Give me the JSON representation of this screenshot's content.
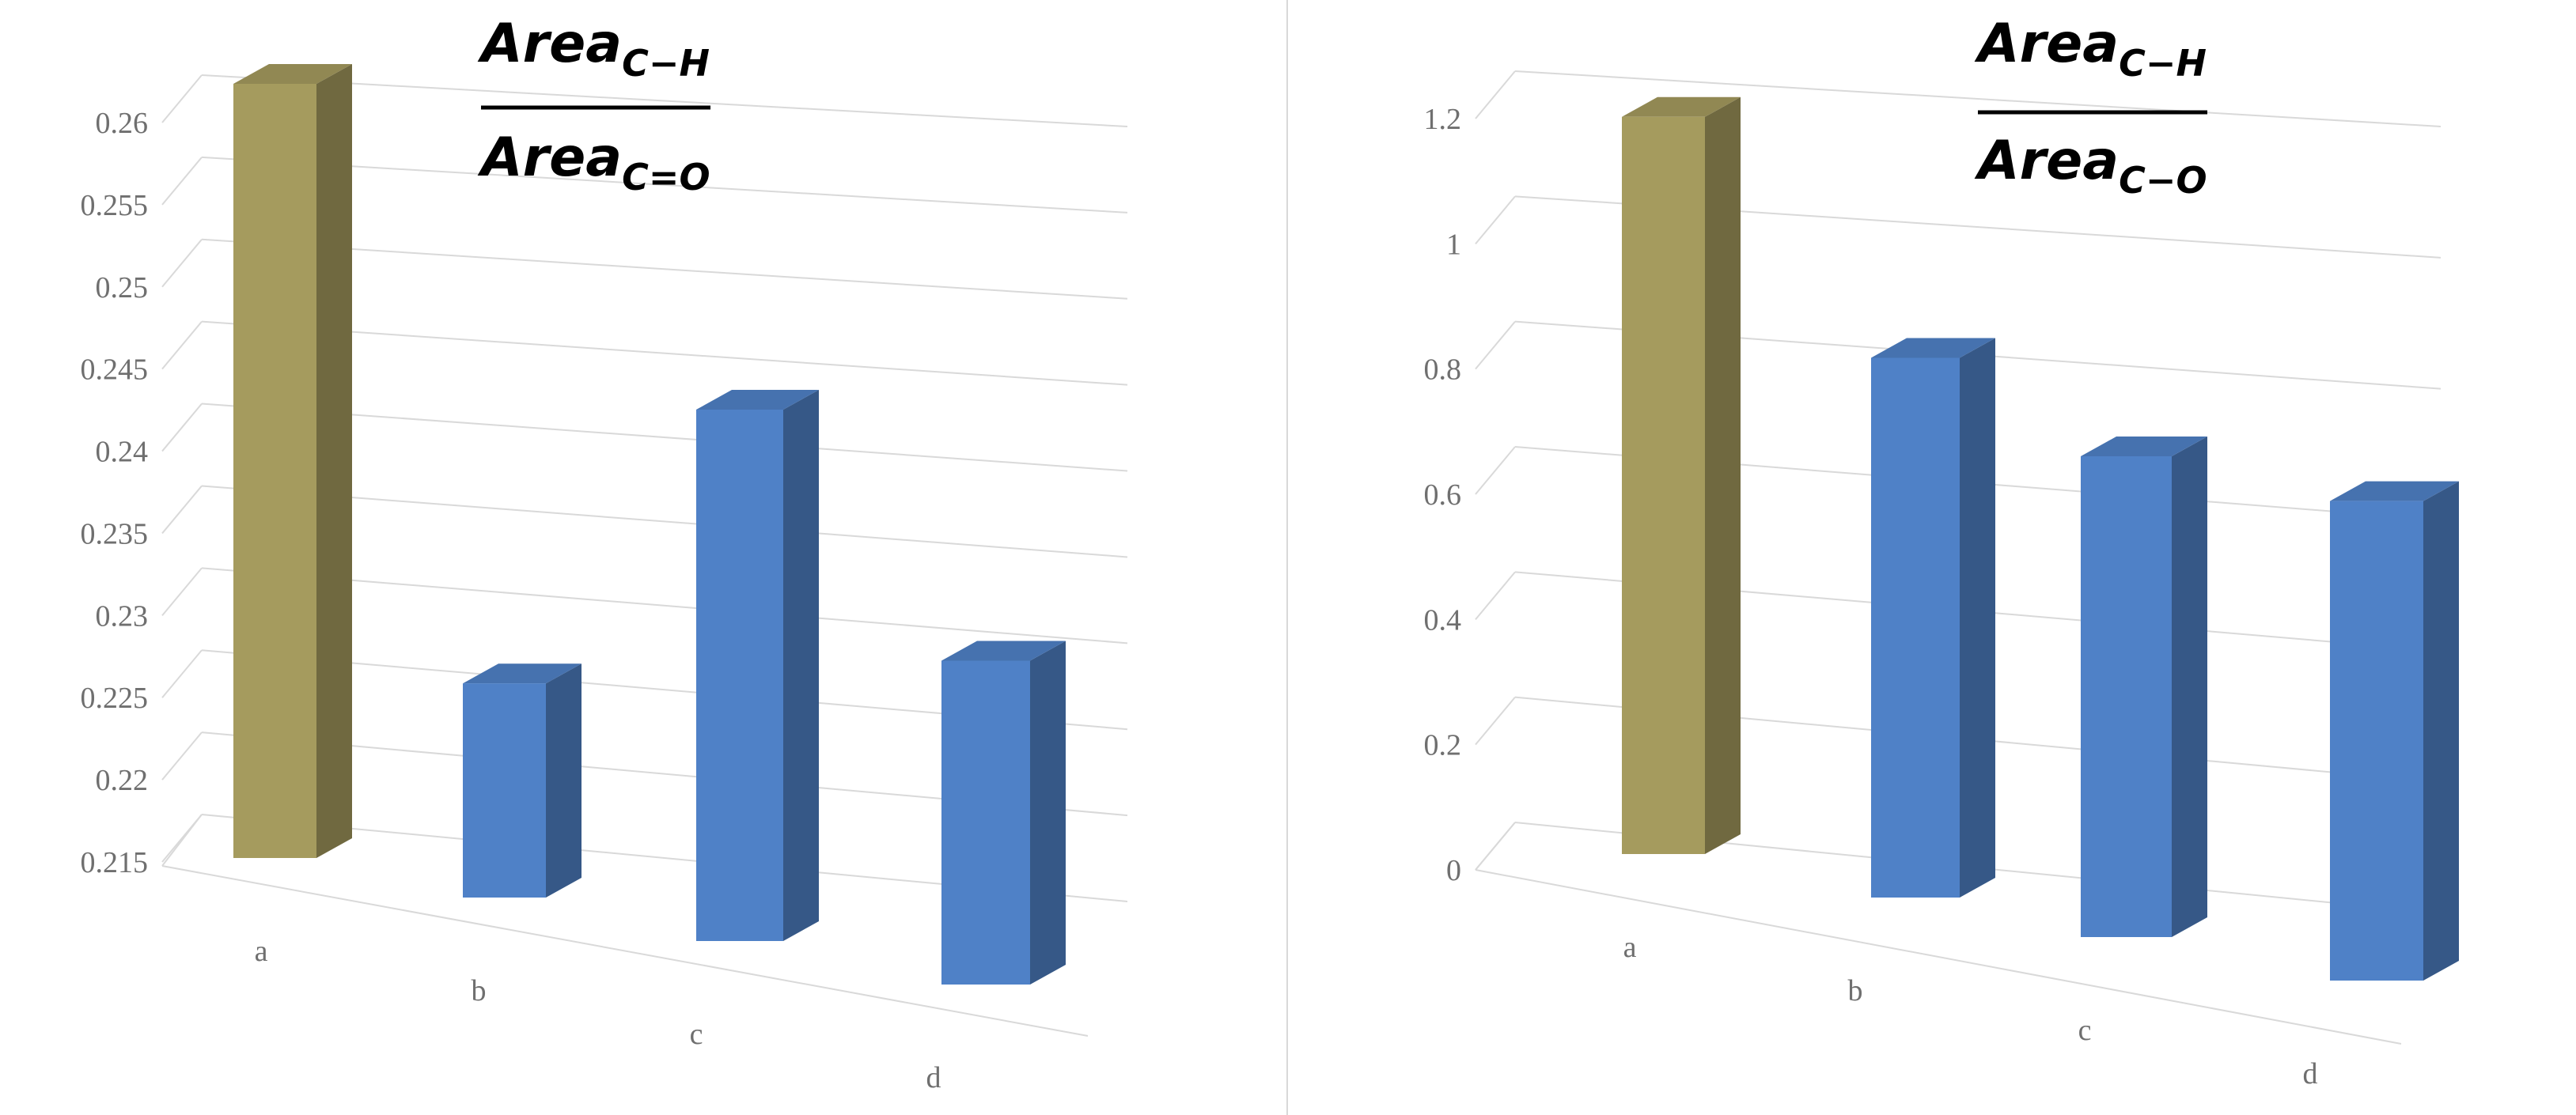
{
  "chart_data": [
    {
      "type": "bar",
      "title": {
        "numerator": "Area",
        "numerator_sub": "C−H",
        "denominator": "Area",
        "denominator_sub": "C=O"
      },
      "categories": [
        "a",
        "b",
        "c",
        "d"
      ],
      "values": [
        0.2595,
        0.2275,
        0.2465,
        0.2345
      ],
      "ylim": [
        0.215,
        0.26
      ],
      "yticks": [
        "0.215",
        "0.22",
        "0.225",
        "0.23",
        "0.235",
        "0.24",
        "0.245",
        "0.25",
        "0.255",
        "0.26"
      ],
      "bar_colors": [
        "#a59b5e",
        "#4f81c7",
        "#4f81c7",
        "#4f81c7"
      ],
      "grid": true,
      "legend": "none",
      "style": "3d-column"
    },
    {
      "type": "bar",
      "title": {
        "numerator": "Area",
        "numerator_sub": "C−H",
        "denominator": "Area",
        "denominator_sub": "C−O"
      },
      "categories": [
        "a",
        "b",
        "c",
        "d"
      ],
      "values": [
        1.13,
        0.84,
        0.76,
        0.77
      ],
      "ylim": [
        0,
        1.2
      ],
      "yticks": [
        "0",
        "0.2",
        "0.4",
        "0.6",
        "0.8",
        "1",
        "1.2"
      ],
      "bar_colors": [
        "#a59b5e",
        "#4f81c7",
        "#4f81c7",
        "#4f81c7"
      ],
      "grid": true,
      "legend": "none",
      "style": "3d-column"
    }
  ]
}
